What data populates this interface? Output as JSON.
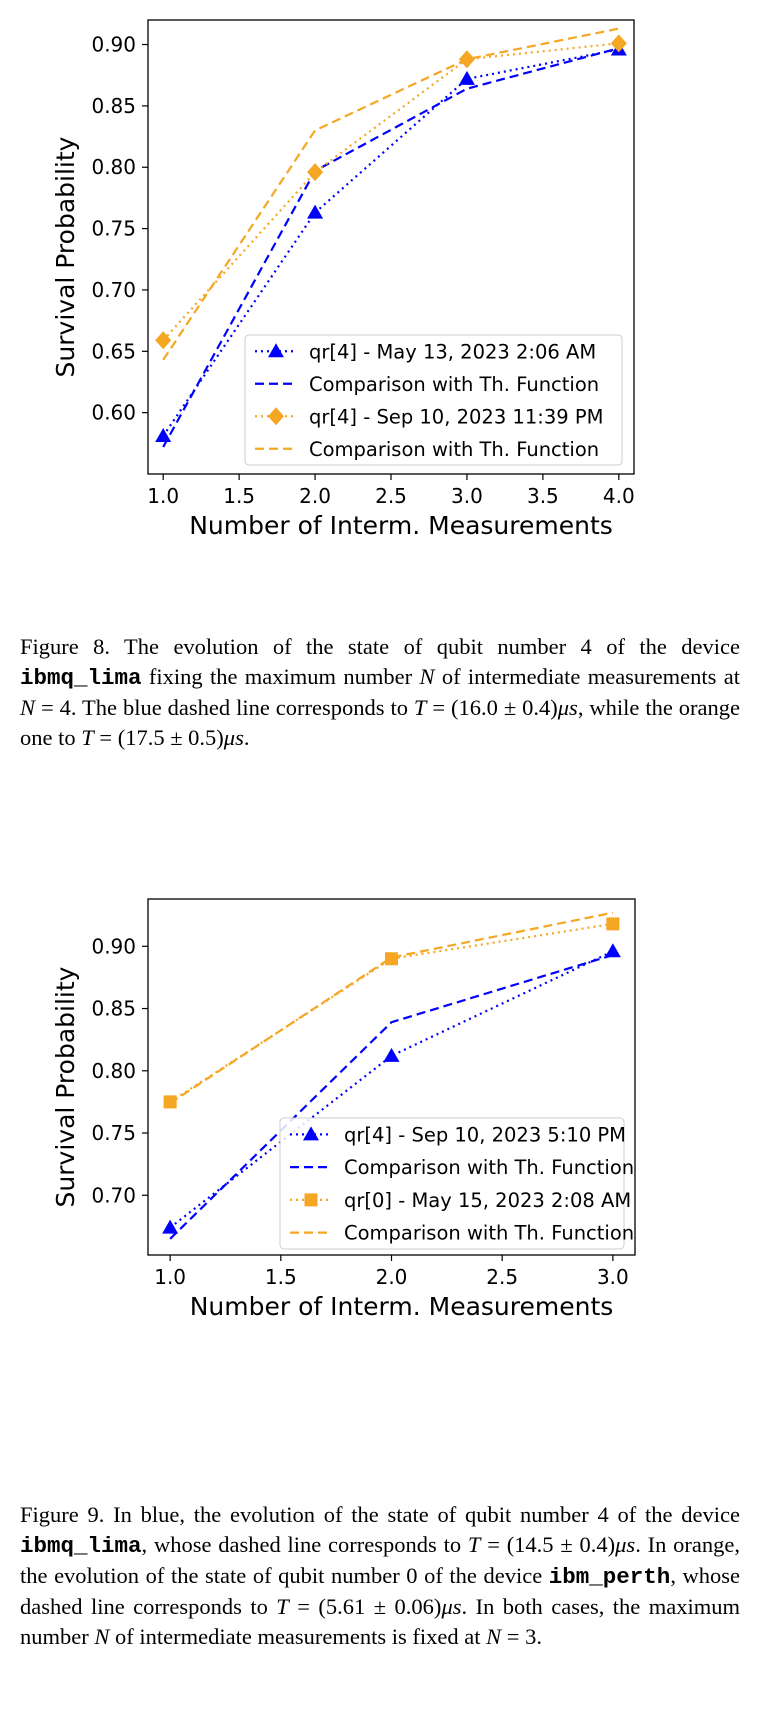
{
  "figure8": {
    "caption_segments": [
      "Figure 8.  The evolution of the state of qubit number 4 of the device ",
      "ibmq_lima",
      " fixing the maximum number ",
      "N",
      " of intermediate measurements at ",
      "N",
      " = 4.  The blue dashed line corresponds to ",
      "T",
      " = (16.0 ± 0.4)",
      "μs",
      ", while the orange one to ",
      "T",
      " = (17.5 ± 0.5)",
      "μs",
      "."
    ]
  },
  "figure9": {
    "caption_segments": [
      "Figure 9.   In blue, the evolution of the state of qubit number 4 of the device ",
      "ibmq_lima",
      ", whose dashed line corresponds to ",
      "T",
      " = (14.5 ± 0.4)",
      "μs",
      ".  In orange, the evolution of the state of qubit number 0 of the device ",
      "ibm_perth",
      ", whose dashed line corresponds to ",
      "T",
      " = (5.61 ± 0.06)",
      "μs",
      ".  In both cases, the maximum number ",
      "N",
      " of intermediate measurements is fixed at ",
      "N",
      " = 3."
    ]
  },
  "colors": {
    "blue": "#0000ff",
    "orange": "#f5a623"
  },
  "chart_data": [
    {
      "type": "line",
      "xlabel": "Number of Interm. Measurements",
      "ylabel": "Survival Probability",
      "xlim": [
        0.9,
        4.1
      ],
      "ylim": [
        0.55,
        0.92
      ],
      "xticks": [
        "1.0",
        "1.5",
        "2.0",
        "2.5",
        "3.0",
        "3.5",
        "4.0"
      ],
      "xtick_values": [
        1.0,
        1.5,
        2.0,
        2.5,
        3.0,
        3.5,
        4.0
      ],
      "yticks": [
        "0.60",
        "0.65",
        "0.70",
        "0.75",
        "0.80",
        "0.85",
        "0.90"
      ],
      "ytick_values": [
        0.6,
        0.65,
        0.7,
        0.75,
        0.8,
        0.85,
        0.9
      ],
      "legend_position": "lower-right",
      "series": [
        {
          "name": "qr[4] - May 13, 2023 2:06 AM",
          "color": "#0000ff",
          "style": "dotted",
          "marker": "triangle",
          "x": [
            1,
            2,
            3,
            4
          ],
          "y": [
            0.581,
            0.763,
            0.872,
            0.896
          ]
        },
        {
          "name": "Comparison with Th. Function",
          "color": "#0000ff",
          "style": "dashed",
          "marker": "none",
          "x": [
            1,
            2,
            3,
            4
          ],
          "y": [
            0.572,
            0.797,
            0.864,
            0.897
          ]
        },
        {
          "name": "qr[4] - Sep 10, 2023 11:39 PM",
          "color": "#f5a623",
          "style": "dotted",
          "marker": "diamond",
          "x": [
            1,
            2,
            3,
            4
          ],
          "y": [
            0.659,
            0.796,
            0.888,
            0.901
          ]
        },
        {
          "name": "Comparison with Th. Function",
          "color": "#f5a623",
          "style": "dashed",
          "marker": "none",
          "x": [
            1,
            2,
            3,
            4
          ],
          "y": [
            0.643,
            0.83,
            0.888,
            0.913
          ]
        }
      ]
    },
    {
      "type": "line",
      "xlabel": "Number of Interm. Measurements",
      "ylabel": "Survival Probability",
      "xlim": [
        0.9,
        3.1
      ],
      "ylim": [
        0.652,
        0.938
      ],
      "xticks": [
        "1.0",
        "1.5",
        "2.0",
        "2.5",
        "3.0"
      ],
      "xtick_values": [
        1.0,
        1.5,
        2.0,
        2.5,
        3.0
      ],
      "yticks": [
        "0.70",
        "0.75",
        "0.80",
        "0.85",
        "0.90"
      ],
      "ytick_values": [
        0.7,
        0.75,
        0.8,
        0.85,
        0.9
      ],
      "legend_position": "lower-right",
      "series": [
        {
          "name": "qr[4] - Sep 10, 2023 5:10 PM",
          "color": "#0000ff",
          "style": "dotted",
          "marker": "triangle",
          "x": [
            1,
            2,
            3
          ],
          "y": [
            0.674,
            0.812,
            0.896
          ]
        },
        {
          "name": "Comparison with Th. Function",
          "color": "#0000ff",
          "style": "dashed",
          "marker": "none",
          "x": [
            1,
            2,
            3
          ],
          "y": [
            0.665,
            0.839,
            0.893
          ]
        },
        {
          "name": "qr[0] - May 15, 2023 2:08 AM",
          "color": "#f5a623",
          "style": "dotted",
          "marker": "square",
          "x": [
            1,
            2,
            3
          ],
          "y": [
            0.775,
            0.89,
            0.918
          ]
        },
        {
          "name": "Comparison with Th. Function",
          "color": "#f5a623",
          "style": "dashed",
          "marker": "none",
          "x": [
            1,
            2,
            3
          ],
          "y": [
            0.774,
            0.891,
            0.927
          ]
        }
      ]
    }
  ]
}
